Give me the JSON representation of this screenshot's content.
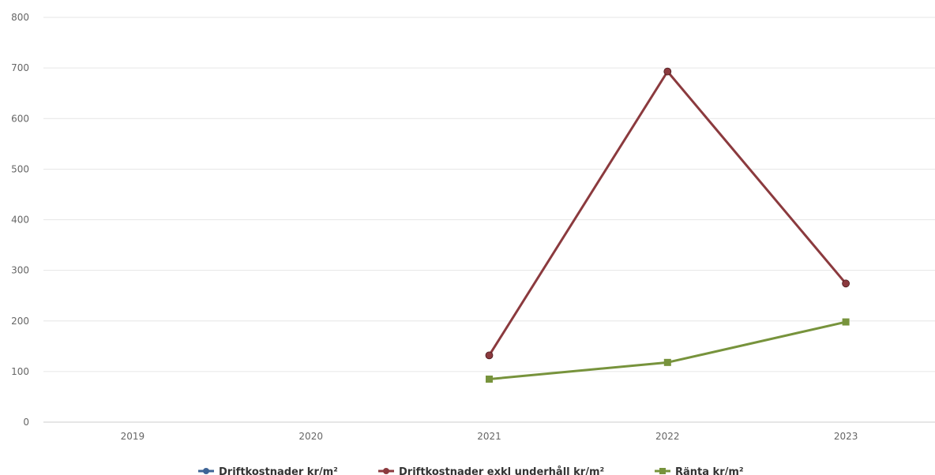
{
  "chart_data": {
    "type": "line",
    "categories": [
      "2019",
      "2020",
      "2021",
      "2022",
      "2023"
    ],
    "ylim": [
      0,
      800
    ],
    "yticks": [
      0,
      100,
      200,
      300,
      400,
      500,
      600,
      700,
      800
    ],
    "grid": true,
    "legend_position": "bottom-center",
    "series": [
      {
        "name": "Driftkostnader kr/m²",
        "color": "#3e6496",
        "marker": "circle",
        "values": [
          null,
          null,
          null,
          null,
          null
        ]
      },
      {
        "name": "Driftkostnader exkl underhåll kr/m²",
        "color": "#8b3a3e",
        "marker": "circle",
        "values": [
          null,
          null,
          132,
          693,
          274
        ]
      },
      {
        "name": "Ränta kr/m²",
        "color": "#77933c",
        "marker": "square",
        "values": [
          null,
          null,
          85,
          118,
          198
        ]
      }
    ]
  }
}
